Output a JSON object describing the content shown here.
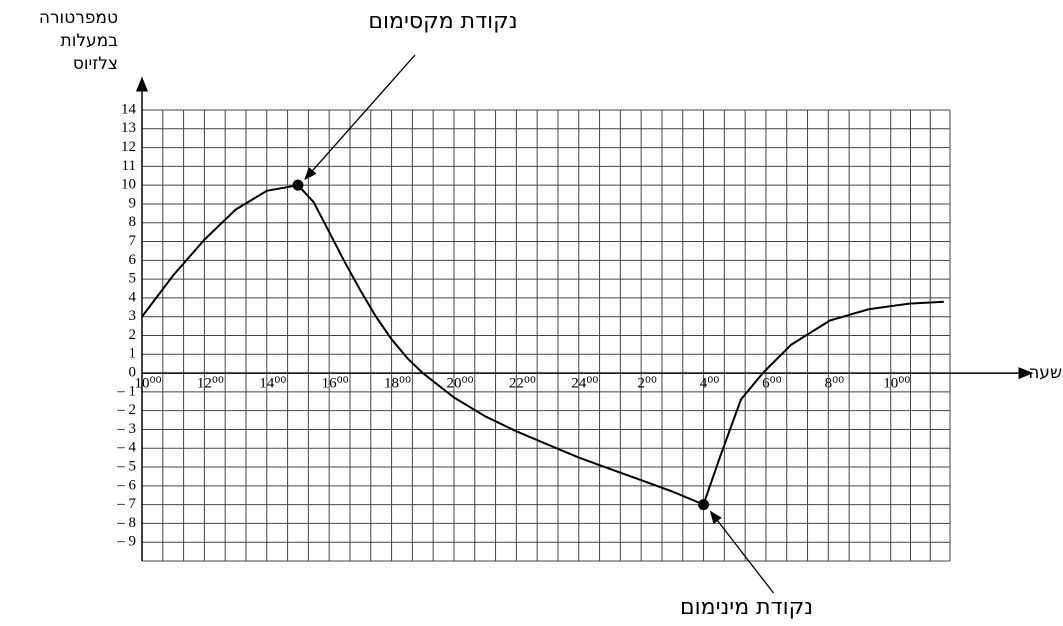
{
  "chart_data": {
    "type": "line",
    "y_label": [
      "טמפרטורה",
      "במעלות",
      "צלזיוס"
    ],
    "x_label": "שעה",
    "x": [
      10,
      11,
      12,
      13,
      14,
      15,
      15.5,
      16,
      16.5,
      17,
      17.5,
      18,
      18.5,
      19,
      20,
      21,
      22,
      23,
      24,
      25,
      26,
      27,
      28,
      28.5,
      29.2,
      29.9,
      30.8,
      32.05,
      33.3,
      34.6,
      35.7
    ],
    "series": [
      {
        "color": "#000000",
        "values": [
          3,
          5.2,
          7.1,
          8.7,
          9.7,
          10,
          9.1,
          7.5,
          5.9,
          4.4,
          3,
          1.8,
          0.8,
          0,
          -1.3,
          -2.3,
          -3.1,
          -3.8,
          -4.5,
          -5.1,
          -5.7,
          -6.3,
          -7,
          -4.6,
          -1.4,
          0,
          1.5,
          2.8,
          3.4,
          3.7,
          3.8
        ]
      }
    ],
    "annotations": [
      {
        "label": "נקודת מקסימום",
        "x": 15,
        "y": 10
      },
      {
        "label": "נקודת מינימום",
        "x": 28,
        "y": -7
      }
    ],
    "xlim": [
      10,
      35.9
    ],
    "xticks": [
      {
        "value": 10,
        "label": "10⁰⁰"
      },
      {
        "value": 12,
        "label": "12⁰⁰"
      },
      {
        "value": 14,
        "label": "14⁰⁰"
      },
      {
        "value": 16,
        "label": "16⁰⁰"
      },
      {
        "value": 18,
        "label": "18⁰⁰"
      },
      {
        "value": 20,
        "label": "20⁰⁰"
      },
      {
        "value": 22,
        "label": "22⁰⁰"
      },
      {
        "value": 24,
        "label": "24⁰⁰"
      },
      {
        "value": 26,
        "label": "2⁰⁰"
      },
      {
        "value": 28,
        "label": "4⁰⁰"
      },
      {
        "value": 30,
        "label": "6⁰⁰"
      },
      {
        "value": 32,
        "label": "8⁰⁰"
      },
      {
        "value": 34,
        "label": "10⁰⁰"
      }
    ],
    "ylim": [
      -10,
      14
    ],
    "yticks": [
      14,
      13,
      12,
      11,
      10,
      9,
      8,
      7,
      6,
      5,
      4,
      3,
      2,
      1,
      0,
      {
        "value": -1,
        "label": "– 1"
      },
      {
        "value": -2,
        "label": "– 2"
      },
      {
        "value": -3,
        "label": "– 3"
      },
      {
        "value": -4,
        "label": "– 4"
      },
      {
        "value": -5,
        "label": "– 5"
      },
      {
        "value": -6,
        "label": "– 6"
      },
      {
        "value": -7,
        "label": "– 7"
      },
      {
        "value": -8,
        "label": "– 8"
      },
      {
        "value": -9,
        "label": "– 9"
      }
    ],
    "grid": true
  }
}
